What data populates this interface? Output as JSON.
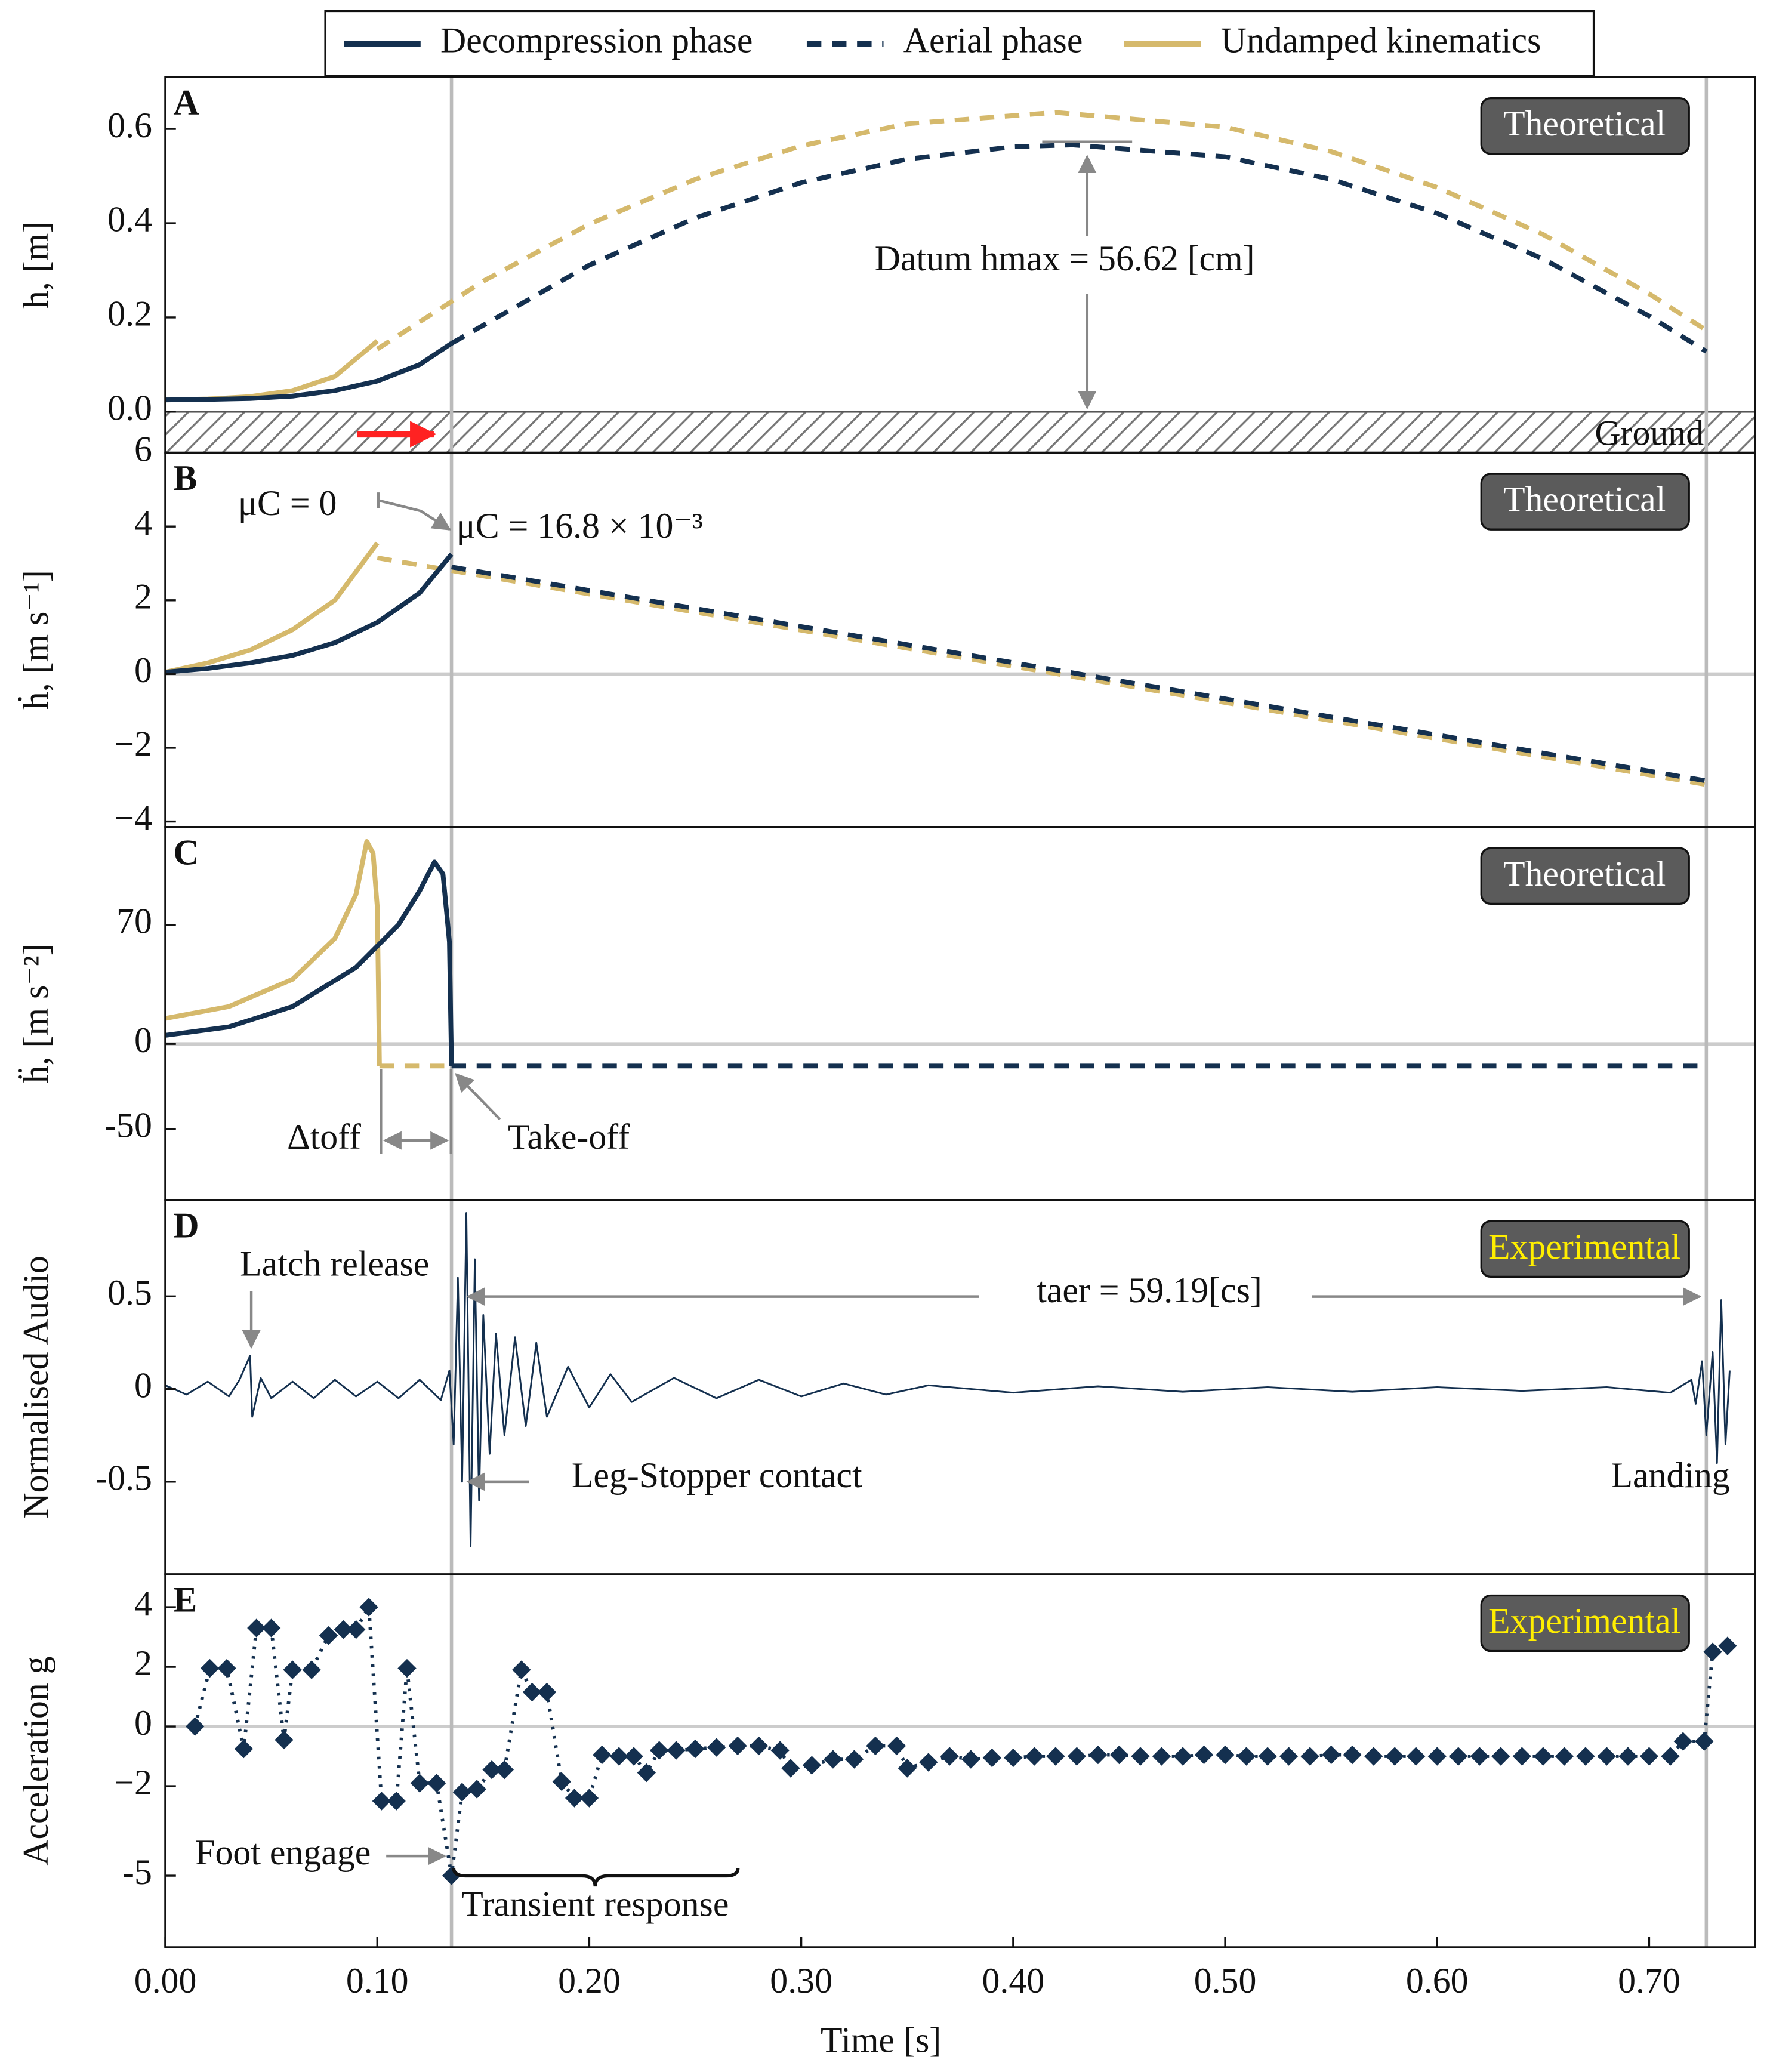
{
  "chart_data": [
    {
      "type": "line",
      "label": "A",
      "badge": "Theoretical",
      "badge_text_color": "#ffffff",
      "ylabel": "h, [m]",
      "xlim": [
        0,
        0.75
      ],
      "ylim": [
        -0.087,
        0.71
      ],
      "yticks": [
        {
          "value": 0,
          "label": "0.0"
        },
        {
          "value": 0.2,
          "label": "0.2"
        },
        {
          "value": 0.4,
          "label": "0.4"
        },
        {
          "value": 0.6,
          "label": "0.6"
        }
      ],
      "vlines": [
        0.135,
        0.727
      ],
      "ground": true,
      "annotations": [
        "Datum hmax = 56.62 [cm]",
        "Ground"
      ],
      "series": [
        {
          "name": "Decompression phase",
          "color": "#14304f",
          "x": [
            0,
            0.02,
            0.04,
            0.06,
            0.08,
            0.1,
            0.12,
            0.135
          ],
          "values": [
            0.025,
            0.026,
            0.028,
            0.033,
            0.045,
            0.065,
            0.1,
            0.145
          ]
        },
        {
          "name": "Aerial phase",
          "color": "#14304f",
          "dash": "dashed",
          "x": [
            0.135,
            0.2,
            0.25,
            0.3,
            0.35,
            0.4,
            0.428,
            0.5,
            0.55,
            0.6,
            0.65,
            0.7,
            0.727
          ],
          "values": [
            0.145,
            0.311,
            0.411,
            0.486,
            0.536,
            0.562,
            0.566,
            0.541,
            0.493,
            0.421,
            0.324,
            0.203,
            0.128
          ]
        },
        {
          "name": "Undamped kinematics",
          "color": "#d5b96c",
          "x": [
            0,
            0.02,
            0.04,
            0.06,
            0.08,
            0.1
          ],
          "values": [
            0.025,
            0.027,
            0.032,
            0.045,
            0.075,
            0.15
          ]
        },
        {
          "color": "#d5b96c",
          "dash": "dashed",
          "x": [
            0.1,
            0.15,
            0.2,
            0.25,
            0.3,
            0.35,
            0.42,
            0.5,
            0.55,
            0.6,
            0.65,
            0.7,
            0.727
          ],
          "values": [
            0.133,
            0.277,
            0.398,
            0.493,
            0.564,
            0.611,
            0.635,
            0.604,
            0.552,
            0.476,
            0.376,
            0.25,
            0.173
          ]
        }
      ]
    },
    {
      "type": "line",
      "label": "B",
      "badge": "Theoretical",
      "badge_text_color": "#ffffff",
      "ylabel": "ḣ, [m s⁻¹]",
      "xlim": [
        0,
        0.75
      ],
      "ylim": [
        -4.15,
        6
      ],
      "yticks": [
        {
          "value": -4,
          "label": "−4"
        },
        {
          "value": -2,
          "label": "−2"
        },
        0,
        2,
        4,
        6
      ],
      "vlines": [
        0.135,
        0.727
      ],
      "zero_line": true,
      "annotations": [
        "μC = 0",
        "μC = 16.8 × 10⁻³"
      ],
      "series": [
        {
          "color": "#14304f",
          "x": [
            0,
            0.02,
            0.04,
            0.06,
            0.08,
            0.1,
            0.12,
            0.135
          ],
          "values": [
            0.05,
            0.15,
            0.3,
            0.5,
            0.85,
            1.4,
            2.2,
            3.25
          ]
        },
        {
          "color": "#14304f",
          "dash": "dashed",
          "x": [
            0.135,
            0.727
          ],
          "values": [
            2.9,
            -2.9
          ]
        },
        {
          "color": "#d5b96c",
          "x": [
            0,
            0.02,
            0.04,
            0.06,
            0.08,
            0.1
          ],
          "values": [
            0.05,
            0.3,
            0.65,
            1.2,
            2.0,
            3.55
          ]
        },
        {
          "color": "#d5b96c",
          "dash": "dashed",
          "x": [
            0.1,
            0.727
          ],
          "values": [
            3.15,
            -3.0
          ]
        }
      ]
    },
    {
      "type": "line",
      "label": "C",
      "badge": "Theoretical",
      "badge_text_color": "#ffffff",
      "ylabel": "ḧ, [m s⁻²]",
      "xlim": [
        0,
        0.75
      ],
      "ylim": [
        -91.8,
        127.5
      ],
      "yticks": [
        -50,
        0,
        70
      ],
      "vlines": [
        0.135,
        0.727
      ],
      "zero_line": true,
      "annotations": [
        "Δtoff",
        "Take-off"
      ],
      "series": [
        {
          "color": "#14304f",
          "x": [
            0,
            0.03,
            0.06,
            0.09,
            0.11,
            0.12,
            0.127,
            0.131,
            0.134,
            0.135
          ],
          "values": [
            5,
            10,
            22,
            45,
            70,
            90,
            107,
            100,
            60,
            -13
          ]
        },
        {
          "color": "#14304f",
          "dash": "dashed",
          "x": [
            0.135,
            0.727
          ],
          "values": [
            -13,
            -13
          ]
        },
        {
          "color": "#d5b96c",
          "x": [
            0,
            0.03,
            0.06,
            0.08,
            0.09,
            0.095,
            0.098,
            0.1,
            0.101
          ],
          "values": [
            15,
            22,
            38,
            62,
            88,
            119,
            112,
            80,
            -13
          ]
        },
        {
          "color": "#d5b96c",
          "dash": "dashed",
          "x": [
            0.101,
            0.135
          ],
          "values": [
            -13,
            -13
          ]
        }
      ]
    },
    {
      "type": "line",
      "label": "D",
      "badge": "Experimental",
      "badge_text_color": "#ffee00",
      "ylabel": "Normalised Audio",
      "xlim": [
        0,
        0.75
      ],
      "ylim": [
        -1,
        1.02
      ],
      "yticks": [
        -0.5,
        0,
        0.5
      ],
      "vlines": [
        0.135,
        0.727
      ],
      "annotations": [
        "Latch release",
        "taer = 59.19[cs]",
        "Leg-Stopper contact",
        "Landing"
      ],
      "series": [
        {
          "color": "#14304f",
          "thin": true,
          "x": [
            0,
            0.01,
            0.02,
            0.03,
            0.035,
            0.04,
            0.041,
            0.045,
            0.05,
            0.06,
            0.07,
            0.08,
            0.09,
            0.1,
            0.11,
            0.12,
            0.13,
            0.134,
            0.136,
            0.138,
            0.14,
            0.142,
            0.144,
            0.146,
            0.148,
            0.15,
            0.153,
            0.156,
            0.16,
            0.165,
            0.17,
            0.175,
            0.18,
            0.19,
            0.2,
            0.21,
            0.22,
            0.24,
            0.26,
            0.28,
            0.3,
            0.32,
            0.34,
            0.36,
            0.4,
            0.44,
            0.48,
            0.52,
            0.56,
            0.6,
            0.64,
            0.68,
            0.71,
            0.72,
            0.722,
            0.725,
            0.727,
            0.73,
            0.732,
            0.734,
            0.736,
            0.738
          ],
          "values": [
            0.02,
            -0.03,
            0.04,
            -0.04,
            0.05,
            0.18,
            -0.15,
            0.06,
            -0.05,
            0.04,
            -0.05,
            0.05,
            -0.04,
            0.04,
            -0.05,
            0.05,
            -0.06,
            0.1,
            -0.3,
            0.6,
            -0.5,
            0.95,
            -0.85,
            0.7,
            -0.6,
            0.4,
            -0.35,
            0.3,
            -0.25,
            0.28,
            -0.2,
            0.25,
            -0.15,
            0.12,
            -0.1,
            0.08,
            -0.07,
            0.06,
            -0.05,
            0.05,
            -0.04,
            0.03,
            -0.03,
            0.02,
            -0.02,
            0.015,
            -0.015,
            0.01,
            -0.015,
            0.01,
            -0.01,
            0.01,
            -0.02,
            0.05,
            -0.08,
            0.15,
            -0.25,
            0.2,
            -0.4,
            0.48,
            -0.3,
            0.1
          ]
        }
      ]
    },
    {
      "type": "line",
      "label": "E",
      "badge": "Experimental",
      "badge_text_color": "#ffee00",
      "ylabel": "Acceleration g",
      "xlabel": "Time [s]",
      "xlim": [
        0,
        0.75
      ],
      "ylim": [
        -7.4,
        5.1
      ],
      "yticks": [
        -5,
        {
          "value": -2,
          "label": "−2"
        },
        0,
        2,
        4
      ],
      "xticks": [
        {
          "value": 0,
          "label": "0.00"
        },
        {
          "value": 0.1,
          "label": "0.10"
        },
        {
          "value": 0.2,
          "label": "0.20"
        },
        {
          "value": 0.3,
          "label": "0.30"
        },
        {
          "value": 0.4,
          "label": "0.40"
        },
        {
          "value": 0.5,
          "label": "0.50"
        },
        {
          "value": 0.6,
          "label": "0.60"
        },
        {
          "value": 0.7,
          "label": "0.70"
        }
      ],
      "vlines": [
        0.135,
        0.727
      ],
      "zero_line": true,
      "annotations": [
        "Foot engage",
        "Transient response"
      ],
      "series": [
        {
          "color": "#14304f",
          "dash": "dotted",
          "markers": true,
          "x": [
            0.014,
            0.021,
            0.029,
            0.037,
            0.043,
            0.05,
            0.056,
            0.06,
            0.069,
            0.077,
            0.084,
            0.09,
            0.096,
            0.102,
            0.109,
            0.114,
            0.12,
            0.128,
            0.135,
            0.14,
            0.147,
            0.154,
            0.16,
            0.168,
            0.173,
            0.18,
            0.187,
            0.193,
            0.2,
            0.206,
            0.214,
            0.221,
            0.227,
            0.233,
            0.241,
            0.25,
            0.26,
            0.27,
            0.28,
            0.29,
            0.295,
            0.305,
            0.315,
            0.325,
            0.335,
            0.345,
            0.35,
            0.36,
            0.37,
            0.38,
            0.39,
            0.4,
            0.41,
            0.42,
            0.43,
            0.44,
            0.45,
            0.46,
            0.47,
            0.48,
            0.49,
            0.5,
            0.51,
            0.52,
            0.53,
            0.54,
            0.55,
            0.56,
            0.57,
            0.58,
            0.59,
            0.6,
            0.61,
            0.62,
            0.63,
            0.64,
            0.65,
            0.66,
            0.67,
            0.68,
            0.69,
            0.7,
            0.71,
            0.716,
            0.726,
            0.73,
            0.737
          ],
          "values": [
            0,
            1.95,
            1.95,
            -0.75,
            3.3,
            3.3,
            -0.45,
            1.9,
            1.9,
            3.05,
            3.25,
            3.25,
            4,
            -2.5,
            -2.5,
            1.95,
            -1.9,
            -1.9,
            -5,
            -2.2,
            -2.1,
            -1.45,
            -1.45,
            1.9,
            1.15,
            1.15,
            -1.85,
            -2.4,
            -2.4,
            -0.95,
            -1.0,
            -1.0,
            -1.55,
            -0.8,
            -0.8,
            -0.75,
            -0.7,
            -0.65,
            -0.65,
            -0.8,
            -1.4,
            -1.3,
            -1.1,
            -1.1,
            -0.65,
            -0.65,
            -1.4,
            -1.2,
            -1.0,
            -1.1,
            -1.05,
            -1.05,
            -1.0,
            -1.0,
            -1.0,
            -0.95,
            -0.95,
            -1.0,
            -1.0,
            -1.0,
            -0.95,
            -0.95,
            -1.0,
            -1.0,
            -1.0,
            -1.0,
            -0.95,
            -0.95,
            -1.0,
            -1.0,
            -1.0,
            -1.0,
            -1.0,
            -1.0,
            -1.0,
            -1.0,
            -1.0,
            -1.0,
            -1.0,
            -1.0,
            -1.0,
            -1.0,
            -1.0,
            -0.5,
            -0.5,
            2.5,
            2.7
          ]
        }
      ]
    }
  ]
}
